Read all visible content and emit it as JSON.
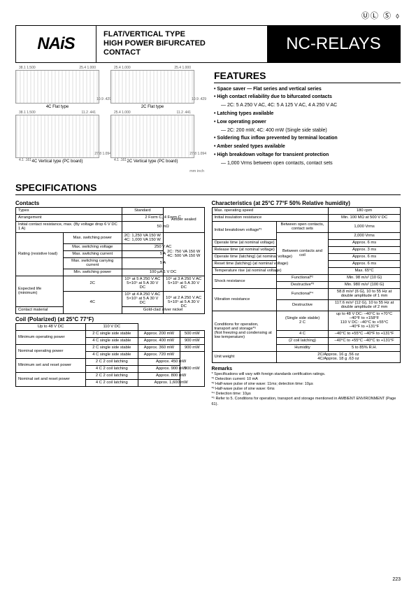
{
  "cert_icons": "ⓊⓁ  Ⓢ  ⬨",
  "header": {
    "logo": "NAiS",
    "desc1": "FLAT/VERTICAL TYPE",
    "desc2": "HIGH POWER BIFURCATED",
    "desc3": "CONTACT",
    "title": "NC-RELAYS"
  },
  "diagrams": {
    "row1": [
      {
        "cap": "4C Flat type",
        "dims": [
          "38.1 1.500",
          "25.4 1.000",
          "10.9 .429"
        ]
      },
      {
        "cap": "2C Flat type",
        "dims": [
          "25.4 1.000",
          "25.4 1.000",
          "10.9 .429"
        ]
      }
    ],
    "row2": [
      {
        "cap": "4C Vertical type (PC board)",
        "dims": [
          "38.1 1.500",
          "11.2 .441",
          "27.8 1.094",
          "4.1 .161"
        ]
      },
      {
        "cap": "2C Vertical type (PC board)",
        "dims": [
          "25.4 1.000",
          "11.2 .441",
          "27.8 1.094",
          "4.1 .161"
        ]
      }
    ],
    "unit_note": "mm inch"
  },
  "features": {
    "heading": "FEATURES",
    "items": [
      {
        "t": "• Space saver — Flat series and vertical series",
        "b": true
      },
      {
        "t": "• High contact reliability due to bifurcated contacts",
        "b": true
      },
      {
        "t": "— 2C: 5 A 250 V AC, 4C: 5 A 125 V AC, 4 A 250 V AC",
        "sub": true
      },
      {
        "t": "• Latching types available",
        "b": true
      },
      {
        "t": "• Low operating power",
        "b": true
      },
      {
        "t": "— 2C: 200 mW, 4C: 400 mW (Single side stable)",
        "sub": true
      },
      {
        "t": "• Soldering flux inflow prevented by terminal location",
        "b": true
      },
      {
        "t": "• Amber sealed types available",
        "b": true
      },
      {
        "t": "• High breakdown voltage for transient protection",
        "b": true
      },
      {
        "t": "— 1,000 Vrms between open contacts, contact sets",
        "sub": true
      }
    ]
  },
  "specs_heading": "SPECIFICATIONS",
  "contacts": {
    "h": "Contacts",
    "rows": [
      [
        "Types",
        "",
        "Standard",
        "Amber sealed"
      ],
      [
        "Arrangement",
        "",
        "2 Form C, 4 Form C",
        ""
      ],
      [
        "Initial contact resistance, max. (By voltage drop 6 V DC 1 A)",
        "",
        "50 mΩ",
        ""
      ],
      [
        "Rating (resistive load)",
        "Max. switching power",
        "2C: 1,250 VA 150 W\n4C: 1,000 VA 150 W",
        "2C: 750 VA 150 W\n4C: 500 VA 150 W"
      ],
      [
        "",
        "Max. switching voltage",
        "250 V AC",
        ""
      ],
      [
        "",
        "Max. switching current",
        "5 A",
        ""
      ],
      [
        "",
        "Max. switching carrying current",
        "5 A",
        ""
      ],
      [
        "",
        "Min. switching power",
        "100 µA 1 V DC",
        ""
      ],
      [
        "Expected life (minimum)",
        "2C",
        "10⁵ at 5 A 250 V AC\n5×10⁵ at 5 A 30 V DC",
        "10⁵ at 3 A 250 V AC\n5×10⁵ at 5 A 30 V DC"
      ],
      [
        "",
        "4C",
        "10⁵ at 4 A 250 V AC\n5×10⁵ at 5 A 30 V DC",
        "10⁵ at 2 A 250 V AC\n5×10⁵ at 5 A 30 V DC"
      ],
      [
        "Contact material",
        "",
        "Gold-clad silver nickel",
        ""
      ]
    ]
  },
  "coil": {
    "h": "Coil (Polarized) (at 25°C 77°F)",
    "rows": [
      [
        "",
        "",
        "Up to 48 V DC",
        "110 V DC"
      ],
      [
        "Minimum operating power",
        "2 C single side stable",
        "Approx. 200 mW",
        "500 mW"
      ],
      [
        "",
        "4 C single side stable",
        "Approx. 400 mW",
        "900 mW"
      ],
      [
        "Nominal operating power",
        "2 C single side stable",
        "Approx. 360 mW",
        "900 mW"
      ],
      [
        "",
        "4 C single side stable",
        "Approx. 720 mW",
        "900 mW"
      ],
      [
        "Minimum set and reset power",
        "2 C 2 coil latching",
        "Approx. 450 mW",
        ""
      ],
      [
        "",
        "4 C 2 coil latching",
        "Approx. 900 mW",
        ""
      ],
      [
        "Nominal set and reset power",
        "2 C 2 coil latching",
        "Approx. 800 mW",
        ""
      ],
      [
        "",
        "4 C 2 coil latching",
        "Approx. 1,600 mW",
        ""
      ]
    ]
  },
  "char": {
    "h": "Characteristics (at 25°C 77°F 50% Relative humidity)",
    "rows": [
      [
        "Max. operating speed",
        "",
        "180 cpm"
      ],
      [
        "Initial insulation resistance",
        "",
        "Min. 100 MΩ at 500 V DC"
      ],
      [
        "Initial breakdown voltage*¹",
        "Between open contacts, contact sets",
        "1,000 Vrms"
      ],
      [
        "",
        "Between contacts and coil",
        "2,000 Vrms"
      ],
      [
        "Operate time (at nominal voltage)",
        "",
        "Approx. 6 ms"
      ],
      [
        "Release time (at nominal voltage)",
        "",
        "Approx. 3 ms"
      ],
      [
        "Operate time (latching) (at nominal voltage)",
        "",
        "Approx. 6 ms"
      ],
      [
        "Reset time (latching) (at nominal voltage)",
        "",
        "Approx. 6 ms"
      ],
      [
        "Temperature rise (at nominal voltage)",
        "",
        "Max. 65°C"
      ],
      [
        "Shock resistance",
        "Functional*²",
        "Min. 98 m/s² {10 G}"
      ],
      [
        "",
        "Destructive*³",
        "Min. 980 m/s² {100 G}"
      ],
      [
        "Vibration resistance",
        "Functional*⁴",
        "58.8 m/s² {6 G}, 10 to 55 Hz at double amplitude of 1 mm"
      ],
      [
        "",
        "Destructive",
        "117.6 m/s² {12 G}, 10 to 55 Hz at double amplitude of 2 mm"
      ]
    ],
    "cond_header": "Conditions for operation, transport and storage*⁵\n(Not freezing and condensing at low temperature)",
    "cond": [
      [
        "(Single side stable)",
        "2 C",
        "up to 48 V DC: –40°C to +70°C\n                        –40°F to +158°F\n110 V DC:       –40°C to +55°C\n                        –40°F to +131°F"
      ],
      [
        "",
        "4 C",
        "–40°C to +55°C –40°F to +131°F"
      ],
      [
        "(2 coil latching)",
        "",
        "–40°C to +55°C –40°C to +131°F"
      ],
      [
        "Humidity",
        "",
        "5 to 85% R.H."
      ]
    ],
    "weight": [
      "Unit weight",
      "",
      "2C/Approx. 16 g .56 oz\n4C/Approx. 18 g .63 oz"
    ]
  },
  "remarks": {
    "h": "Remarks",
    "lines": [
      "* Specifications will vary with foreign standards certification ratings.",
      "*¹ Detection current: 10 mA",
      "*² Half-wave pulse of sine wave: 11ms; detection time: 10µs",
      "*³ Half-wave pulse of sine wave: 6ms",
      "*⁴ Detection time: 10µs",
      "*⁵ Refer to 5. Conditions for operation, transport and storage mentioned in AMBIENT ENVIRONMENT (Page 61)."
    ]
  },
  "page_num": "223"
}
